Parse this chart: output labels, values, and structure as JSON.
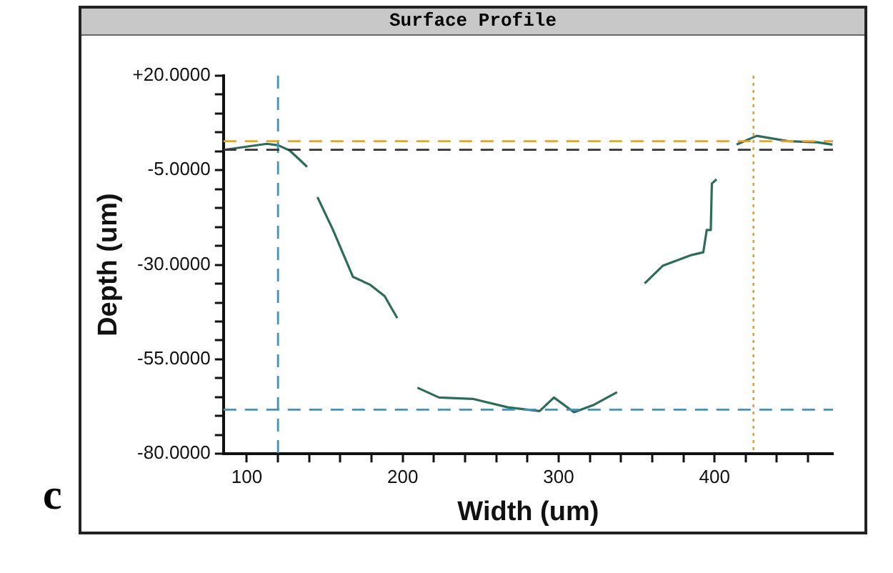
{
  "chart_data": {
    "type": "line",
    "title": "Surface Profile",
    "xlabel": "Width (um)",
    "ylabel": "Depth (um)",
    "annotations": [
      "c"
    ],
    "x": [
      85.3,
      112.9,
      120.2,
      127.6,
      138.7,
      141,
      145.3,
      155.3,
      168.1,
      179.2,
      188.4,
      196.5,
      202,
      209.4,
      223.3,
      245.4,
      267.5,
      287.8,
      297,
      309.9,
      322.8,
      337.5,
      346,
      355.2,
      367,
      385.4,
      392.8,
      395,
      397.6,
      398.3,
      401.3,
      408,
      414.2,
      427.1,
      447.3,
      465.8,
      475.7
    ],
    "series": [
      {
        "color": "#2e6b5a",
        "values": [
          0.4,
          2.0,
          1.6,
          0.2,
          -4.1,
          null,
          -12.1,
          -20.8,
          -33.2,
          -35.3,
          -38.3,
          -44.1,
          null,
          -62.5,
          -65.1,
          -65.5,
          -67.7,
          -68.7,
          -65.1,
          -69.0,
          -67.0,
          -63.7,
          null,
          -34.9,
          -30.2,
          -27.4,
          -26.7,
          -20.8,
          -20.8,
          -8.5,
          -7.4,
          null,
          1.8,
          4.1,
          2.7,
          2.4,
          1.8
        ]
      }
    ],
    "xlim": [
      85,
      476
    ],
    "ylim": [
      -80,
      20
    ],
    "xticks": [
      100,
      {
        "value": 120,
        "label": null
      },
      {
        "value": 140,
        "label": null
      },
      {
        "value": 160,
        "label": null
      },
      {
        "value": 180,
        "label": null
      },
      200,
      {
        "value": 220,
        "label": null
      },
      {
        "value": 240,
        "label": null
      },
      {
        "value": 260,
        "label": null
      },
      {
        "value": 280,
        "label": null
      },
      300,
      {
        "value": 320,
        "label": null
      },
      {
        "value": 340,
        "label": null
      },
      {
        "value": 360,
        "label": null
      },
      {
        "value": 380,
        "label": null
      },
      400,
      {
        "value": 420,
        "label": null
      },
      {
        "value": 440,
        "label": null
      },
      {
        "value": 460,
        "label": null
      }
    ],
    "yticks": [
      {
        "value": 20,
        "label": "+20.0000"
      },
      {
        "value": 15,
        "label": null
      },
      {
        "value": 10,
        "label": null
      },
      {
        "value": 5,
        "label": null
      },
      {
        "value": 0,
        "label": null
      },
      {
        "value": -5,
        "label": "-5.0000"
      },
      {
        "value": -10,
        "label": null
      },
      {
        "value": -15,
        "label": null
      },
      {
        "value": -20,
        "label": null
      },
      {
        "value": -25,
        "label": null
      },
      {
        "value": -30,
        "label": "-30.0000"
      },
      {
        "value": -35,
        "label": null
      },
      {
        "value": -40,
        "label": null
      },
      {
        "value": -45,
        "label": null
      },
      {
        "value": -50,
        "label": null
      },
      {
        "value": -55,
        "label": "-55.0000"
      },
      {
        "value": -60,
        "label": null
      },
      {
        "value": -65,
        "label": null
      },
      {
        "value": -70,
        "label": null
      },
      {
        "value": -75,
        "label": null
      },
      {
        "value": -80,
        "label": "-80.0000"
      }
    ],
    "ref_lines": [
      {
        "axis": "x",
        "value": 120,
        "color": "#4a8fb5",
        "line_style": "dashed"
      },
      {
        "axis": "x",
        "value": 425,
        "color": "#e0a53a",
        "line_style": "dotted"
      },
      {
        "axis": "y",
        "value": 2.7,
        "color": "#e0a53a",
        "line_style": "dashed"
      },
      {
        "axis": "y",
        "value": 0.4,
        "color": "#333333",
        "line_style": "dashed"
      },
      {
        "axis": "y",
        "value": -68.3,
        "color": "#4a8fb5",
        "line_style": "dashed"
      }
    ],
    "grid": false,
    "legend": false,
    "marker": "none",
    "line_style": "solid"
  }
}
